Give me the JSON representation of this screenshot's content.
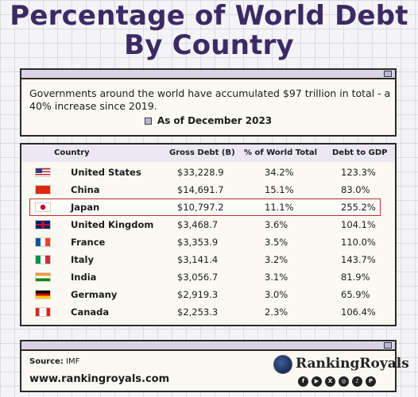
{
  "title": {
    "line1": "Percentage of  World Debt",
    "line2": "By Country"
  },
  "intro": {
    "description": "Governments around the world have accumulated $97 trillion in total - a 40% increase since 2019.",
    "as_of": "As of December 2023"
  },
  "chart_data": {
    "type": "table",
    "columns": [
      "Country",
      "Gross Debt (B)",
      "% of World Total",
      "Debt to GDP"
    ],
    "rows": [
      {
        "country": "United States",
        "flag": "us-flag-icon",
        "gross_debt": "$33,228.9",
        "pct_world": "34.2%",
        "debt_gdp": "123.3%"
      },
      {
        "country": "China",
        "flag": "china-flag-icon",
        "gross_debt": "$14,691.7",
        "pct_world": "15.1%",
        "debt_gdp": "83.0%"
      },
      {
        "country": "Japan",
        "flag": "japan-flag-icon",
        "gross_debt": "$10,797.2",
        "pct_world": "11.1%",
        "debt_gdp": "255.2%",
        "highlighted": true
      },
      {
        "country": "United Kingdom",
        "flag": "uk-flag-icon",
        "gross_debt": "$3,468.7",
        "pct_world": "3.6%",
        "debt_gdp": "104.1%"
      },
      {
        "country": "France",
        "flag": "france-flag-icon",
        "gross_debt": "$3,353.9",
        "pct_world": "3.5%",
        "debt_gdp": "110.0%"
      },
      {
        "country": "Italy",
        "flag": "italy-flag-icon",
        "gross_debt": "$3,141.4",
        "pct_world": "3.2%",
        "debt_gdp": "143.7%"
      },
      {
        "country": "India",
        "flag": "india-flag-icon",
        "gross_debt": "$3,056.7",
        "pct_world": "3.1%",
        "debt_gdp": "81.9%"
      },
      {
        "country": "Germany",
        "flag": "germany-flag-icon",
        "gross_debt": "$2,919.3",
        "pct_world": "3.0%",
        "debt_gdp": "65.9%"
      },
      {
        "country": "Canada",
        "flag": "canada-flag-icon",
        "gross_debt": "$2,253.3",
        "pct_world": "2.3%",
        "debt_gdp": "106.4%"
      }
    ]
  },
  "footer": {
    "source_label": "Source:",
    "source_value": " IMF",
    "website": "www.rankingroyals.com",
    "brand": "RankingRoyals",
    "social_icons": [
      "facebook-icon",
      "youtube-icon",
      "x-icon",
      "instagram-icon",
      "tiktok-icon",
      "pinterest-icon"
    ]
  },
  "colors": {
    "title": "#3b2a63",
    "highlight_border": "#b83232",
    "header_bg": "#ebe8f3",
    "panel_bg": "#fbfaf2"
  }
}
